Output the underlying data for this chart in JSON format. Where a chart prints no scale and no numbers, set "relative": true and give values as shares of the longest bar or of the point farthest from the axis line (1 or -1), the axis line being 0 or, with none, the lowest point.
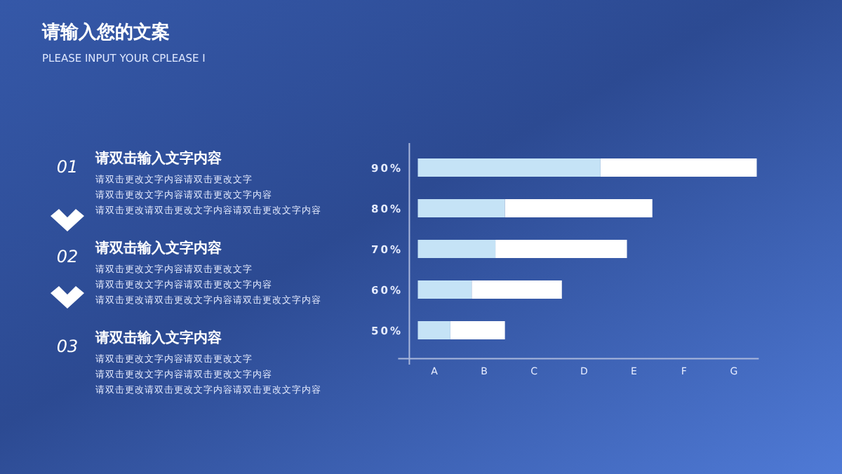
{
  "chart_data": {
    "type": "bar",
    "orientation": "horizontal",
    "stacked": true,
    "relative": true,
    "title": "请输入您的文案",
    "subtitle": "PLEASE INPUT YOUR CPLEASE I",
    "categories": [
      "90%",
      "80%",
      "70%",
      "60%",
      "50%"
    ],
    "series": [
      {
        "color": "#c5e3f6",
        "values": [
          0.539,
          0.257,
          0.229,
          0.159,
          0.096
        ]
      },
      {
        "color": "#ffffff",
        "values": [
          0.461,
          0.435,
          0.388,
          0.266,
          0.161
        ]
      }
    ],
    "annotations": [
      "01",
      "请双击输入文字内容",
      "请双击更改文字内容请双击更改文字",
      "请双击更改文字内容请双击更改文字内容",
      "请双击更改请双击更改文字内容请双击更改文字内容",
      "02",
      "请双击输入文字内容",
      "请双击更改文字内容请双击更改文字",
      "请双击更改文字内容请双击更改文字内容",
      "请双击更改请双击更改文字内容请双击更改文字内容",
      "03",
      "请双击输入文字内容",
      "请双击更改文字内容请双击更改文字",
      "请双击更改文字内容请双击更改文字内容",
      "请双击更改请双击更改文字内容请双击更改文字内容",
      "A",
      "B",
      "C",
      "D",
      "E",
      "F",
      "G"
    ]
  }
}
